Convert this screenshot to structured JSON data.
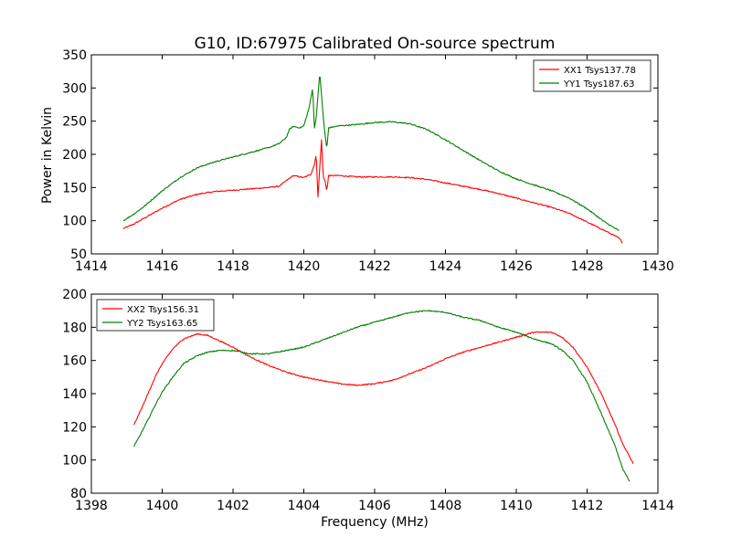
{
  "figure": {
    "title": "G10, ID:67975 Calibrated On-source spectrum",
    "xlabel": "Frequency (MHz)",
    "ylabel": "Power in Kelvin"
  },
  "chart_data": [
    {
      "type": "line",
      "panel": "top",
      "xlim": [
        1414,
        1430
      ],
      "ylim": [
        50,
        350
      ],
      "xticks": [
        1414,
        1416,
        1418,
        1420,
        1422,
        1424,
        1426,
        1428,
        1430
      ],
      "yticks": [
        50,
        100,
        150,
        200,
        250,
        300,
        350
      ],
      "ylabel": "Power in Kelvin",
      "xlabel": "",
      "grid": false,
      "legend": "top-right",
      "series": [
        {
          "name": "XX1 Tsys137.78",
          "color": "#ff0000",
          "points": [
            [
              1414.9,
              88
            ],
            [
              1415.2,
              95
            ],
            [
              1415.5,
              104
            ],
            [
              1416.0,
              119
            ],
            [
              1416.5,
              132
            ],
            [
              1417.0,
              140
            ],
            [
              1417.5,
              144
            ],
            [
              1418.0,
              146
            ],
            [
              1418.5,
              148
            ],
            [
              1419.0,
              150
            ],
            [
              1419.3,
              152
            ],
            [
              1419.5,
              160
            ],
            [
              1419.7,
              168
            ],
            [
              1420.0,
              165
            ],
            [
              1420.2,
              170
            ],
            [
              1420.3,
              185
            ],
            [
              1420.35,
              200
            ],
            [
              1420.4,
              135
            ],
            [
              1420.45,
              180
            ],
            [
              1420.5,
              222
            ],
            [
              1420.55,
              165
            ],
            [
              1420.6,
              160
            ],
            [
              1420.65,
              145
            ],
            [
              1420.7,
              168
            ],
            [
              1421.0,
              168
            ],
            [
              1421.5,
              166
            ],
            [
              1422.0,
              166
            ],
            [
              1422.5,
              166
            ],
            [
              1423.0,
              165
            ],
            [
              1423.5,
              162
            ],
            [
              1424.0,
              157
            ],
            [
              1424.5,
              152
            ],
            [
              1425.0,
              147
            ],
            [
              1425.5,
              141
            ],
            [
              1426.0,
              134
            ],
            [
              1426.5,
              127
            ],
            [
              1427.0,
              120
            ],
            [
              1427.5,
              111
            ],
            [
              1428.0,
              98
            ],
            [
              1428.5,
              85
            ],
            [
              1428.9,
              74
            ],
            [
              1429.0,
              67
            ]
          ]
        },
        {
          "name": "YY1 Tsys187.63",
          "color": "#008000",
          "points": [
            [
              1414.9,
              100
            ],
            [
              1415.2,
              110
            ],
            [
              1415.5,
              122
            ],
            [
              1416.0,
              145
            ],
            [
              1416.5,
              165
            ],
            [
              1417.0,
              180
            ],
            [
              1417.5,
              189
            ],
            [
              1418.0,
              196
            ],
            [
              1418.5,
              203
            ],
            [
              1419.0,
              210
            ],
            [
              1419.3,
              216
            ],
            [
              1419.5,
              225
            ],
            [
              1419.6,
              238
            ],
            [
              1419.7,
              242
            ],
            [
              1419.9,
              240
            ],
            [
              1420.0,
              243
            ],
            [
              1420.15,
              270
            ],
            [
              1420.25,
              300
            ],
            [
              1420.3,
              240
            ],
            [
              1420.35,
              255
            ],
            [
              1420.4,
              290
            ],
            [
              1420.45,
              322
            ],
            [
              1420.5,
              290
            ],
            [
              1420.55,
              255
            ],
            [
              1420.6,
              230
            ],
            [
              1420.65,
              208
            ],
            [
              1420.7,
              240
            ],
            [
              1421.0,
              243
            ],
            [
              1421.5,
              245
            ],
            [
              1422.0,
              248
            ],
            [
              1422.5,
              249
            ],
            [
              1423.0,
              246
            ],
            [
              1423.5,
              237
            ],
            [
              1424.0,
              222
            ],
            [
              1424.5,
              206
            ],
            [
              1425.0,
              190
            ],
            [
              1425.5,
              175
            ],
            [
              1426.0,
              163
            ],
            [
              1426.5,
              154
            ],
            [
              1427.0,
              145
            ],
            [
              1427.5,
              134
            ],
            [
              1428.0,
              118
            ],
            [
              1428.5,
              98
            ],
            [
              1428.9,
              85
            ]
          ]
        }
      ]
    },
    {
      "type": "line",
      "panel": "bottom",
      "xlim": [
        1398,
        1414
      ],
      "ylim": [
        80,
        200
      ],
      "xticks": [
        1398,
        1400,
        1402,
        1404,
        1406,
        1408,
        1410,
        1412,
        1414
      ],
      "yticks": [
        80,
        100,
        120,
        140,
        160,
        180,
        200
      ],
      "xlabel": "Frequency (MHz)",
      "ylabel": "",
      "grid": false,
      "legend": "top-left",
      "series": [
        {
          "name": "XX2 Tsys156.31",
          "color": "#ff0000",
          "points": [
            [
              1399.2,
              121
            ],
            [
              1399.5,
              135
            ],
            [
              1399.8,
              150
            ],
            [
              1400.0,
              158
            ],
            [
              1400.3,
              167
            ],
            [
              1400.6,
              173
            ],
            [
              1401.0,
              176
            ],
            [
              1401.3,
              175
            ],
            [
              1401.6,
              172
            ],
            [
              1402.0,
              168
            ],
            [
              1402.5,
              162
            ],
            [
              1403.0,
              157
            ],
            [
              1403.5,
              153
            ],
            [
              1404.0,
              150
            ],
            [
              1404.5,
              148
            ],
            [
              1405.0,
              146
            ],
            [
              1405.5,
              145
            ],
            [
              1406.0,
              146
            ],
            [
              1406.5,
              148
            ],
            [
              1407.0,
              152
            ],
            [
              1407.5,
              156
            ],
            [
              1408.0,
              161
            ],
            [
              1408.5,
              165
            ],
            [
              1409.0,
              168
            ],
            [
              1409.5,
              171
            ],
            [
              1410.0,
              174
            ],
            [
              1410.5,
              177
            ],
            [
              1411.0,
              177
            ],
            [
              1411.3,
              174
            ],
            [
              1411.6,
              168
            ],
            [
              1412.0,
              156
            ],
            [
              1412.4,
              140
            ],
            [
              1412.8,
              121
            ],
            [
              1413.0,
              110
            ],
            [
              1413.3,
              98
            ]
          ]
        },
        {
          "name": "YY2 Tsys163.65",
          "color": "#008000",
          "points": [
            [
              1399.2,
              108
            ],
            [
              1399.5,
              120
            ],
            [
              1399.8,
              133
            ],
            [
              1400.0,
              141
            ],
            [
              1400.3,
              150
            ],
            [
              1400.6,
              158
            ],
            [
              1401.0,
              163
            ],
            [
              1401.3,
              165
            ],
            [
              1401.6,
              166
            ],
            [
              1402.0,
              166
            ],
            [
              1402.5,
              164
            ],
            [
              1403.0,
              164
            ],
            [
              1403.5,
              166
            ],
            [
              1404.0,
              168
            ],
            [
              1404.5,
              172
            ],
            [
              1405.0,
              176
            ],
            [
              1405.5,
              180
            ],
            [
              1406.0,
              183
            ],
            [
              1406.5,
              186
            ],
            [
              1407.0,
              189
            ],
            [
              1407.5,
              190
            ],
            [
              1408.0,
              189
            ],
            [
              1408.5,
              186
            ],
            [
              1409.0,
              184
            ],
            [
              1409.5,
              180
            ],
            [
              1410.0,
              177
            ],
            [
              1410.5,
              173
            ],
            [
              1411.0,
              170
            ],
            [
              1411.3,
              166
            ],
            [
              1411.6,
              160
            ],
            [
              1412.0,
              147
            ],
            [
              1412.4,
              128
            ],
            [
              1412.8,
              108
            ],
            [
              1413.0,
              95
            ],
            [
              1413.2,
              87
            ]
          ]
        }
      ]
    }
  ]
}
